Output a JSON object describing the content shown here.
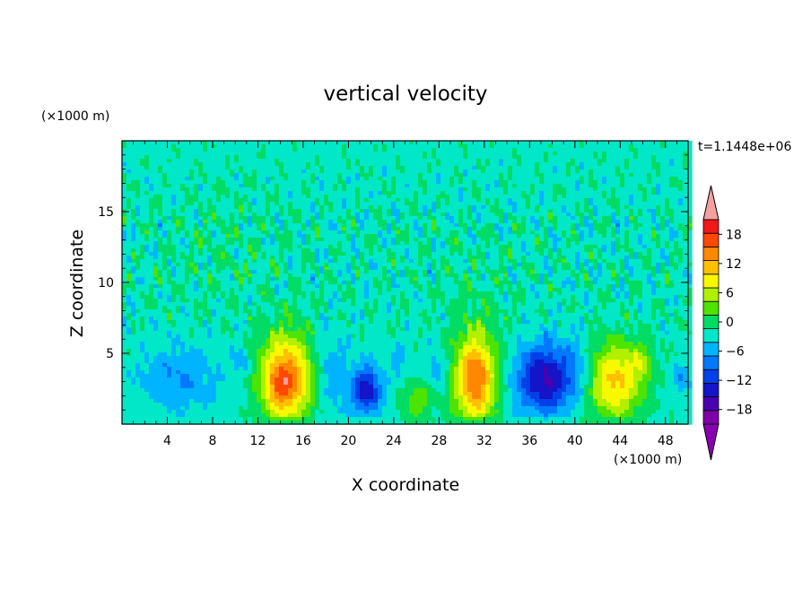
{
  "chart_data": {
    "type": "heatmap",
    "title": "vertical velocity",
    "xlabel": "X coordinate",
    "ylabel": "Z coordinate",
    "x_unit": "(×1000 m)",
    "y_unit": "(×1000 m)",
    "time_label": "t=1.1448e+06",
    "xlim": [
      0,
      50
    ],
    "ylim": [
      0,
      20
    ],
    "x_ticks": [
      4,
      8,
      12,
      16,
      20,
      24,
      28,
      32,
      36,
      40,
      44,
      48
    ],
    "y_ticks": [
      5,
      10,
      15
    ],
    "colorbar": {
      "levels": [
        -21,
        -18,
        -15,
        -12,
        -9,
        -6,
        -3,
        0,
        3,
        6,
        9,
        12,
        15,
        18,
        21
      ],
      "tick_labels": [
        18,
        12,
        6,
        0,
        -6,
        -12,
        -18
      ],
      "colors": [
        "#7f00a8",
        "#4a00b0",
        "#1414c8",
        "#0040e8",
        "#0078ff",
        "#00b4ff",
        "#00e8c8",
        "#00dc64",
        "#4ce400",
        "#b0f000",
        "#f8f800",
        "#ffc000",
        "#ff8800",
        "#ff4800",
        "#f01818"
      ],
      "over_color": "#f4a0a0",
      "under_color": "#8800b0"
    },
    "background_w": -1,
    "features": [
      {
        "x": 14.5,
        "z": 3.2,
        "sx": 1.6,
        "sz": 2.2,
        "amp": 19
      },
      {
        "x": 13.8,
        "z": 2.6,
        "sx": 0.7,
        "sz": 1.0,
        "amp": 4
      },
      {
        "x": 21.6,
        "z": 2.4,
        "sx": 0.9,
        "sz": 1.2,
        "amp": -13
      },
      {
        "x": 26.0,
        "z": 1.6,
        "sx": 1.0,
        "sz": 1.0,
        "amp": 6
      },
      {
        "x": 31.2,
        "z": 3.2,
        "sx": 1.3,
        "sz": 2.3,
        "amp": 19
      },
      {
        "x": 37.4,
        "z": 3.2,
        "sx": 1.8,
        "sz": 1.7,
        "amp": -15
      },
      {
        "x": 43.5,
        "z": 3.0,
        "sx": 1.7,
        "sz": 1.9,
        "amp": 14
      },
      {
        "x": 45.8,
        "z": 4.4,
        "sx": 0.8,
        "sz": 1.0,
        "amp": 5
      },
      {
        "x": 5.0,
        "z": 3.2,
        "sx": 2.5,
        "sz": 1.6,
        "amp": -5
      },
      {
        "x": 10.5,
        "z": 4.5,
        "sx": 0.5,
        "sz": 0.6,
        "amp": -5
      },
      {
        "x": 18.5,
        "z": 3.5,
        "sx": 1.2,
        "sz": 2.0,
        "amp": -4
      },
      {
        "x": 27.8,
        "z": 4.0,
        "sx": 0.6,
        "sz": 0.8,
        "amp": -5
      },
      {
        "x": 49.5,
        "z": 3.2,
        "sx": 0.5,
        "sz": 0.8,
        "amp": -5
      },
      {
        "x": 40.5,
        "z": 4.0,
        "sx": 0.8,
        "sz": 1.5,
        "amp": -3
      },
      {
        "x": 24.5,
        "z": 4.5,
        "sx": 0.5,
        "sz": 1.0,
        "amp": -3
      },
      {
        "x": 9.0,
        "z": 12.0,
        "sx": 4.0,
        "sz": 3.0,
        "amp": 1.2
      },
      {
        "x": 31.0,
        "z": 9.5,
        "sx": 4.0,
        "sz": 2.5,
        "amp": 1.0
      }
    ]
  }
}
